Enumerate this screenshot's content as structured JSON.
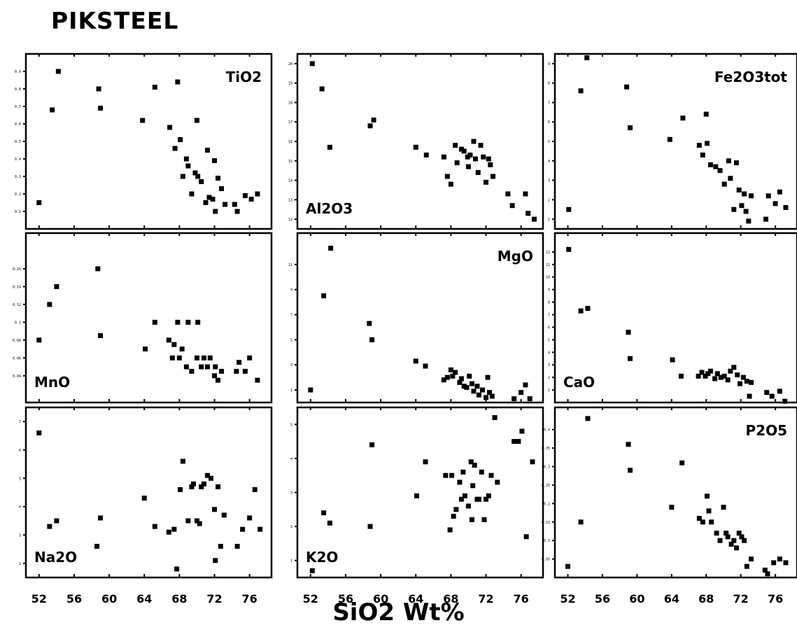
{
  "title": "PIKSTEEL",
  "xaxis_title": "SiO2 Wt%",
  "chart_data": {
    "type": "scatter",
    "x_ticks": [
      52,
      56,
      60,
      64,
      68,
      72,
      76
    ],
    "xlim": [
      50.5,
      78.5
    ],
    "panels": [
      {
        "label": "TiO2",
        "label_pos": "top-right",
        "ylim": [
          0,
          1
        ],
        "yticks": [
          0.1,
          0.2,
          0.3,
          0.4,
          0.5,
          0.6,
          0.7,
          0.8,
          0.9
        ],
        "ytick_labels": [
          "0.1",
          "0.2",
          "0.3",
          "0.4",
          "0.5",
          "0.6",
          "0.7",
          "0.8",
          "0.9"
        ],
        "x": [
          52,
          53.5,
          54.2,
          58.8,
          59,
          63.8,
          65.2,
          66.9,
          67.5,
          67.8,
          68.1,
          68.4,
          68.8,
          69,
          69.4,
          69.8,
          70,
          70.1,
          70.5,
          71,
          71.2,
          71.4,
          71.8,
          72,
          72.1,
          72.4,
          72.8,
          73.2,
          74.3,
          74.6,
          75.5,
          76.2,
          76.9
        ],
        "y": [
          0.15,
          0.68,
          0.9,
          0.8,
          0.69,
          0.62,
          0.81,
          0.58,
          0.46,
          0.84,
          0.51,
          0.3,
          0.4,
          0.36,
          0.2,
          0.32,
          0.62,
          0.3,
          0.27,
          0.15,
          0.45,
          0.18,
          0.17,
          0.39,
          0.1,
          0.29,
          0.23,
          0.14,
          0.14,
          0.1,
          0.19,
          0.17,
          0.2
        ]
      },
      {
        "label": "Al2O3",
        "label_pos": "bottom-left",
        "ylim": [
          11.5,
          20.5
        ],
        "yticks": [
          12,
          13,
          14,
          15,
          16,
          17,
          18,
          19,
          20
        ],
        "ytick_labels": [
          "12",
          "13",
          "14",
          "15",
          "16",
          "17",
          "18",
          "19",
          "20"
        ],
        "x": [
          52.2,
          53.3,
          54.2,
          58.8,
          59.2,
          64,
          65.2,
          67.2,
          67.6,
          68,
          68.5,
          68.7,
          69.2,
          69.5,
          69.9,
          70,
          70.2,
          70.6,
          70.8,
          71.1,
          71.4,
          71.7,
          72,
          72.3,
          72.5,
          72.8,
          74.5,
          75,
          76.5,
          76.8,
          77.5
        ],
        "y": [
          20,
          18.7,
          15.7,
          16.8,
          17.1,
          15.7,
          15.3,
          15.2,
          14.2,
          13.8,
          15.8,
          14.9,
          15.6,
          15.5,
          15.2,
          14.7,
          15.3,
          16,
          15.1,
          14.4,
          15.8,
          15.2,
          13.9,
          15.1,
          14.8,
          14.2,
          13.3,
          12.7,
          13.3,
          12.3,
          12
        ]
      },
      {
        "label": "Fe2O3tot",
        "label_pos": "top-right",
        "ylim": [
          0.5,
          9.5
        ],
        "yticks": [
          1,
          2,
          3,
          4,
          5,
          6,
          7,
          8,
          9
        ],
        "ytick_labels": [
          "1",
          "2",
          "3",
          "4",
          "5",
          "6",
          "7",
          "8",
          "9"
        ],
        "x": [
          52.1,
          53.5,
          54.2,
          58.8,
          59.2,
          63.8,
          65.3,
          67.2,
          67.6,
          68,
          68.1,
          68.5,
          69.1,
          69.6,
          70.1,
          70.6,
          70.8,
          71.2,
          71.5,
          71.8,
          72.1,
          72.4,
          72.6,
          72.9,
          73.2,
          74.9,
          75.2,
          76,
          76.5,
          77.2
        ],
        "y": [
          1.5,
          7.6,
          9.3,
          7.8,
          5.7,
          5.1,
          6.2,
          4.8,
          4.3,
          6.4,
          4.9,
          3.8,
          3.7,
          3.5,
          2.8,
          4,
          3.1,
          1.5,
          3.9,
          2.5,
          1.7,
          2.3,
          1.4,
          0.9,
          2.2,
          1,
          2.2,
          1.8,
          2.4,
          1.6
        ]
      },
      {
        "label": "MnO",
        "label_pos": "bottom-left",
        "ylim": [
          0.01,
          0.2
        ],
        "yticks": [
          0.04,
          0.06,
          0.08,
          0.1,
          0.12,
          0.14,
          0.16
        ],
        "ytick_labels": [
          "0.04",
          "0.06",
          "0.08",
          "0.1",
          "0.12",
          "0.14",
          "0.16"
        ],
        "x": [
          52,
          53.2,
          54,
          58.7,
          59,
          64.1,
          65.2,
          66.8,
          67.2,
          67.4,
          67.8,
          68,
          68.3,
          68.8,
          69,
          69.4,
          70,
          70.1,
          70.5,
          70.8,
          71.2,
          71.5,
          72,
          72.1,
          72.4,
          72.8,
          74.5,
          74.8,
          75.5,
          76,
          76.9
        ],
        "y": [
          0.08,
          0.12,
          0.14,
          0.16,
          0.085,
          0.07,
          0.1,
          0.08,
          0.06,
          0.075,
          0.1,
          0.06,
          0.07,
          0.05,
          0.1,
          0.045,
          0.06,
          0.1,
          0.05,
          0.06,
          0.05,
          0.06,
          0.04,
          0.05,
          0.035,
          0.045,
          0.045,
          0.055,
          0.045,
          0.06,
          0.035
        ]
      },
      {
        "label": "MgO",
        "label_pos": "top-right",
        "ylim": [
          0,
          13.5
        ],
        "yticks": [
          1,
          3,
          5,
          7,
          9,
          11
        ],
        "ytick_labels": [
          "1",
          "3",
          "5",
          "7",
          "9",
          "11"
        ],
        "x": [
          52,
          53.5,
          54.3,
          58.7,
          59,
          64,
          65.1,
          67.2,
          67.6,
          68,
          68.2,
          68.5,
          69,
          69.2,
          69.5,
          69.8,
          70.1,
          70.4,
          70.6,
          71,
          71.2,
          71.6,
          72,
          72.2,
          72.4,
          72.7,
          75.2,
          76,
          76.5,
          77
        ],
        "y": [
          1,
          8.5,
          12.3,
          6.3,
          5,
          3.3,
          2.9,
          1.8,
          2,
          2.6,
          2.1,
          2.4,
          1.6,
          1.9,
          1.3,
          1.2,
          2.1,
          1.5,
          0.9,
          1.3,
          0.6,
          1,
          0.4,
          2,
          0.8,
          0.5,
          0.3,
          0.8,
          1.4,
          0.3
        ]
      },
      {
        "label": "CaO",
        "label_pos": "bottom-left",
        "ylim": [
          0,
          13.5
        ],
        "yticks": [
          1,
          2,
          3,
          4,
          5,
          6,
          7,
          8,
          9,
          10,
          11,
          12
        ],
        "ytick_labels": [
          "1",
          "2",
          "3",
          "4",
          "5",
          "6",
          "7",
          "8",
          "9",
          "10",
          "11",
          "12"
        ],
        "x": [
          52.1,
          53.5,
          54.3,
          59,
          59.2,
          64.1,
          65.1,
          67.1,
          67.5,
          67.9,
          68.2,
          68.5,
          69,
          69.3,
          69.7,
          70.1,
          70.5,
          70.8,
          71.2,
          71.6,
          71.9,
          72.3,
          72.7,
          73,
          73.2,
          75,
          75.6,
          76.5,
          77.1
        ],
        "y": [
          12.2,
          7.3,
          7.5,
          5.6,
          3.5,
          3.4,
          2.1,
          2.1,
          2.4,
          2.1,
          2.3,
          2.5,
          1.9,
          2.3,
          2,
          2.1,
          1.8,
          2.5,
          2.8,
          2.2,
          1.5,
          2,
          1.7,
          0.5,
          1.6,
          0.8,
          0.5,
          0.9,
          0.1
        ]
      },
      {
        "label": "Na2O",
        "label_pos": "bottom-left",
        "ylim": [
          1.5,
          7.5
        ],
        "yticks": [
          2,
          3,
          4,
          5,
          6,
          7
        ],
        "ytick_labels": [
          "2",
          "3",
          "4",
          "5",
          "6",
          "7"
        ],
        "x": [
          52,
          53.2,
          54,
          58.6,
          59,
          64,
          65.2,
          66.8,
          67.4,
          67.7,
          68.1,
          68.4,
          69,
          69.4,
          69.6,
          70,
          70.3,
          70.5,
          70.8,
          71.2,
          71.6,
          72,
          72.1,
          72.4,
          72.7,
          73.1,
          74.6,
          75.2,
          76,
          76.6,
          77.2
        ],
        "y": [
          6.6,
          3.3,
          3.5,
          2.6,
          3.6,
          4.3,
          3.3,
          3.1,
          3.2,
          1.8,
          4.6,
          5.6,
          3.5,
          4.7,
          4.8,
          3.5,
          3.4,
          4.7,
          4.8,
          5.1,
          5,
          3.9,
          2.1,
          4.7,
          2.6,
          3.7,
          2.6,
          3.2,
          3.6,
          4.6,
          3.2
        ]
      },
      {
        "label": "K2O",
        "label_pos": "bottom-left",
        "ylim": [
          0.5,
          5.5
        ],
        "yticks": [
          1,
          2,
          3,
          4,
          5
        ],
        "ytick_labels": [
          "1",
          "2",
          "3",
          "4",
          "5"
        ],
        "x": [
          52.2,
          53.5,
          54.2,
          58.8,
          59,
          64.1,
          65.1,
          67.4,
          67.9,
          68.1,
          68.3,
          68.6,
          69,
          69.2,
          69.4,
          69.6,
          70,
          70.3,
          70.4,
          70.5,
          70.7,
          71,
          71.2,
          71.5,
          71.8,
          72,
          72.3,
          72.6,
          73,
          73.3,
          75.2,
          75.7,
          76.1,
          76.6,
          77.3
        ],
        "y": [
          0.7,
          2.4,
          2.1,
          2,
          4.4,
          2.9,
          3.9,
          3.5,
          1.9,
          3.5,
          2.3,
          2.5,
          3.3,
          2.8,
          3.6,
          2.9,
          2.6,
          3.9,
          2.2,
          3.2,
          3.8,
          2.8,
          2.8,
          3.6,
          2.2,
          2.8,
          2.9,
          3.5,
          5.2,
          3.3,
          4.5,
          4.5,
          4.8,
          1.7,
          3.9
        ]
      },
      {
        "label": "P2O5",
        "label_pos": "top-right",
        "ylim": [
          0,
          0.46
        ],
        "yticks": [
          0.05,
          0.1,
          0.15,
          0.2,
          0.25,
          0.3,
          0.35,
          0.4
        ],
        "ytick_labels": [
          "0.05",
          "0.1",
          "0.15",
          "0.2",
          "0.25",
          "0.3",
          "0.35",
          "0.4"
        ],
        "x": [
          52,
          53.5,
          54.3,
          59,
          59.2,
          64,
          65.2,
          67.2,
          67.6,
          68.1,
          68.3,
          68.6,
          69.2,
          69.6,
          70,
          70.3,
          70.5,
          70.9,
          71.2,
          71.5,
          71.8,
          72.1,
          72.4,
          72.7,
          73.2,
          74.8,
          75.1,
          75.8,
          76.5,
          77.2
        ],
        "y": [
          0.03,
          0.15,
          0.43,
          0.36,
          0.29,
          0.19,
          0.31,
          0.16,
          0.15,
          0.22,
          0.18,
          0.15,
          0.12,
          0.1,
          0.19,
          0.12,
          0.11,
          0.09,
          0.1,
          0.08,
          0.12,
          0.11,
          0.1,
          0.03,
          0.05,
          0.02,
          0.01,
          0.04,
          0.05,
          0.04
        ]
      }
    ]
  }
}
